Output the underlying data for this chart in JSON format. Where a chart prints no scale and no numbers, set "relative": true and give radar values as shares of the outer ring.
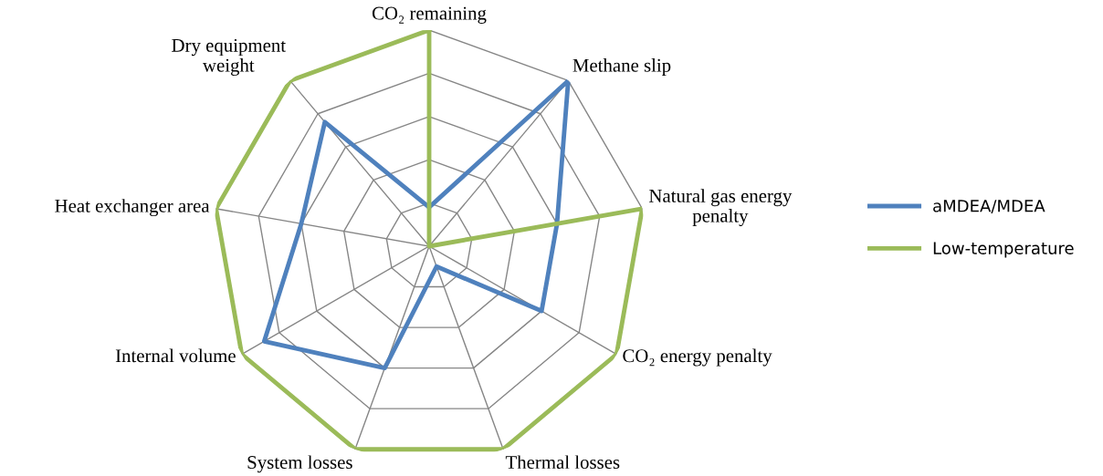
{
  "chart_data": {
    "type": "radar",
    "relative": true,
    "grid": true,
    "legend": "right",
    "marker": "none",
    "line_style": "solid",
    "categories": [
      "CO₂ remaining",
      "Methane slip",
      "Natural gas energy\npenalty",
      "CO₂ energy penalty",
      "Thermal losses",
      "System losses",
      "Internal volume",
      "Heat exchanger area",
      "Dry equipment\nweight"
    ],
    "series": [
      {
        "name": "aMDEA/MDEA",
        "color": "#4f81bd",
        "values": [
          0.18,
          1,
          0.6,
          0.6,
          0.1,
          0.6,
          0.88,
          0.6,
          0.75
        ]
      },
      {
        "name": "Low-temperature",
        "color": "#9bbb59",
        "values": [
          1,
          0,
          1,
          1,
          1,
          1,
          1,
          1,
          1
        ]
      }
    ]
  }
}
